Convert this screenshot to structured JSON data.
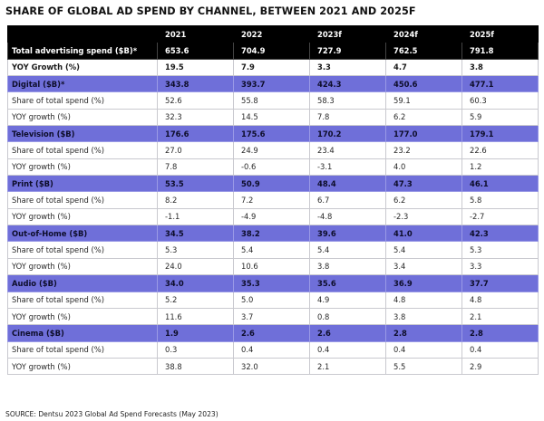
{
  "title": "SHARE OF GLOBAL AD SPEND BY CHANNEL, BETWEEN 2021 AND 2025F",
  "columns": [
    "",
    "2021",
    "2022",
    "2023f",
    "2024f",
    "2025f"
  ],
  "rows": [
    {
      "kind": "total",
      "label": "Total advertising spend ($B)*",
      "values": [
        "653.6",
        "704.9",
        "727.9",
        "762.5",
        "791.8"
      ]
    },
    {
      "kind": "bold",
      "label": "YOY Growth (%)",
      "values": [
        "19.5",
        "7.9",
        "3.3",
        "4.7",
        "3.8"
      ]
    },
    {
      "kind": "channel",
      "label": "Digital ($B)*",
      "values": [
        "343.8",
        "393.7",
        "424.3",
        "450.6",
        "477.1"
      ]
    },
    {
      "kind": "sub",
      "label": "Share of total spend (%)",
      "values": [
        "52.6",
        "55.8",
        "58.3",
        "59.1",
        "60.3"
      ]
    },
    {
      "kind": "sub",
      "label": "YOY growth (%)",
      "values": [
        "32.3",
        "14.5",
        "7.8",
        "6.2",
        "5.9"
      ]
    },
    {
      "kind": "channel",
      "label": "Television ($B)",
      "values": [
        "176.6",
        "175.6",
        "170.2",
        "177.0",
        "179.1"
      ]
    },
    {
      "kind": "sub",
      "label": "Share of total spend (%)",
      "values": [
        "27.0",
        "24.9",
        "23.4",
        "23.2",
        "22.6"
      ]
    },
    {
      "kind": "sub",
      "label": "YOY growth (%)",
      "values": [
        "7.8",
        "-0.6",
        "-3.1",
        "4.0",
        "1.2"
      ]
    },
    {
      "kind": "channel",
      "label": "Print ($B)",
      "values": [
        "53.5",
        "50.9",
        "48.4",
        "47.3",
        "46.1"
      ]
    },
    {
      "kind": "sub",
      "label": "Share of total spend (%)",
      "values": [
        "8.2",
        "7.2",
        "6.7",
        "6.2",
        "5.8"
      ]
    },
    {
      "kind": "sub",
      "label": "YOY growth (%)",
      "values": [
        "-1.1",
        "-4.9",
        "-4.8",
        "-2.3",
        "-2.7"
      ]
    },
    {
      "kind": "channel",
      "label": "Out-of-Home ($B)",
      "values": [
        "34.5",
        "38.2",
        "39.6",
        "41.0",
        "42.3"
      ]
    },
    {
      "kind": "sub",
      "label": "Share of total spend (%)",
      "values": [
        "5.3",
        "5.4",
        "5.4",
        "5.4",
        "5.3"
      ]
    },
    {
      "kind": "sub",
      "label": "YOY growth (%)",
      "values": [
        "24.0",
        "10.6",
        "3.8",
        "3.4",
        "3.3"
      ]
    },
    {
      "kind": "channel",
      "label": "Audio ($B)",
      "values": [
        "34.0",
        "35.3",
        "35.6",
        "36.9",
        "37.7"
      ]
    },
    {
      "kind": "sub",
      "label": "Share of total spend (%)",
      "values": [
        "5.2",
        "5.0",
        "4.9",
        "4.8",
        "4.8"
      ]
    },
    {
      "kind": "sub",
      "label": "YOY growth (%)",
      "values": [
        "11.6",
        "3.7",
        "0.8",
        "3.8",
        "2.1"
      ]
    },
    {
      "kind": "channel",
      "label": "Cinema ($B)",
      "values": [
        "1.9",
        "2.6",
        "2.6",
        "2.8",
        "2.8"
      ]
    },
    {
      "kind": "sub",
      "label": "Share of total spend (%)",
      "values": [
        "0.3",
        "0.4",
        "0.4",
        "0.4",
        "0.4"
      ]
    },
    {
      "kind": "sub",
      "label": "YOY growth (%)",
      "values": [
        "38.8",
        "32.0",
        "2.1",
        "5.5",
        "2.9"
      ]
    }
  ],
  "source": "SOURCE: Dentsu 2023 Global Ad Spend Forecasts (May 2023)",
  "colors": {
    "header_bg": "#000000",
    "channel_bg": "#6f6fd9",
    "grid": "#c9c9cf"
  }
}
